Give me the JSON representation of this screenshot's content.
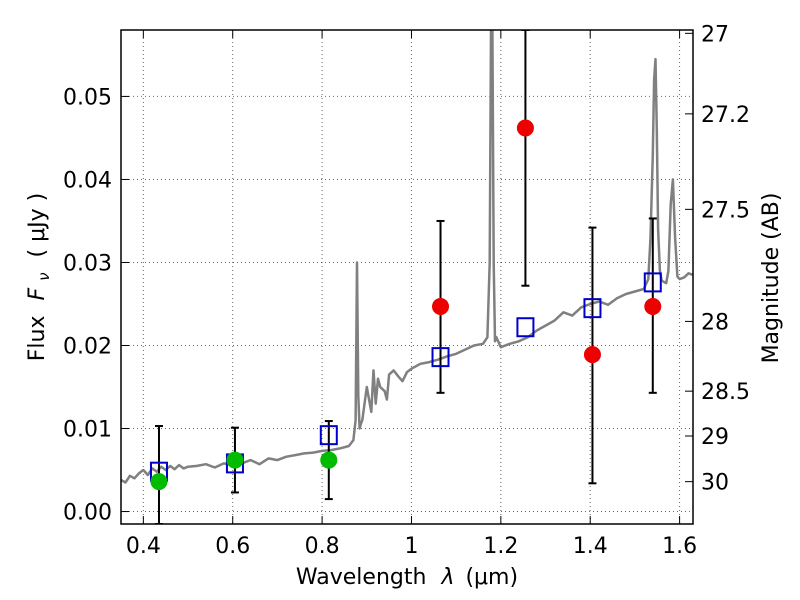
{
  "chart_data": {
    "type": "scatter",
    "xlabel": "Wavelength",
    "xlabel_symbol": "λ",
    "xlabel_unit": "(μm)",
    "ylabel": "Flux",
    "ylabel_symbol": "F",
    "ylabel_subscript": "ν",
    "ylabel_unit": "( μJy )",
    "y2label": "Magnitude (AB)",
    "xlim": [
      0.35,
      1.63
    ],
    "ylim": [
      -0.0015,
      0.058
    ],
    "grid": true,
    "xticks": [
      {
        "value": 0.4,
        "label": "0.4"
      },
      {
        "value": 0.6,
        "label": "0.6"
      },
      {
        "value": 0.8,
        "label": "0.8"
      },
      {
        "value": 1.0,
        "label": "1"
      },
      {
        "value": 1.2,
        "label": "1.2"
      },
      {
        "value": 1.4,
        "label": "1.4"
      },
      {
        "value": 1.6,
        "label": "1.6"
      }
    ],
    "yticks": [
      {
        "value": 0.0,
        "label": "0.00"
      },
      {
        "value": 0.01,
        "label": "0.01"
      },
      {
        "value": 0.02,
        "label": "0.02"
      },
      {
        "value": 0.03,
        "label": "0.03"
      },
      {
        "value": 0.04,
        "label": "0.04"
      },
      {
        "value": 0.05,
        "label": "0.05"
      }
    ],
    "y2ticks": [
      {
        "flux": 0.0576,
        "label": "27"
      },
      {
        "flux": 0.0479,
        "label": "27.2"
      },
      {
        "flux": 0.0364,
        "label": "27.5"
      },
      {
        "flux": 0.0229,
        "label": "28"
      },
      {
        "flux": 0.0145,
        "label": "28.5"
      },
      {
        "flux": 0.0091,
        "label": "29"
      },
      {
        "flux": 0.0036,
        "label": "30"
      }
    ],
    "series": [
      {
        "name": "model-spectrum",
        "kind": "line",
        "color": "#808080",
        "x": [
          0.35,
          0.36,
          0.37,
          0.38,
          0.39,
          0.4,
          0.41,
          0.42,
          0.43,
          0.44,
          0.45,
          0.46,
          0.47,
          0.48,
          0.49,
          0.5,
          0.52,
          0.54,
          0.56,
          0.58,
          0.6,
          0.62,
          0.64,
          0.66,
          0.68,
          0.7,
          0.72,
          0.74,
          0.76,
          0.78,
          0.8,
          0.82,
          0.84,
          0.86,
          0.87,
          0.875,
          0.878,
          0.881,
          0.884,
          0.887,
          0.89,
          0.9,
          0.91,
          0.915,
          0.92,
          0.925,
          0.93,
          0.94,
          0.945,
          0.95,
          0.96,
          0.97,
          0.98,
          0.99,
          1.0,
          1.02,
          1.04,
          1.06,
          1.08,
          1.1,
          1.12,
          1.14,
          1.16,
          1.17,
          1.175,
          1.178,
          1.181,
          1.184,
          1.187,
          1.19,
          1.2,
          1.22,
          1.24,
          1.26,
          1.28,
          1.3,
          1.32,
          1.34,
          1.36,
          1.38,
          1.4,
          1.42,
          1.44,
          1.46,
          1.48,
          1.5,
          1.52,
          1.53,
          1.535,
          1.54,
          1.543,
          1.546,
          1.549,
          1.552,
          1.556,
          1.56,
          1.57,
          1.575,
          1.58,
          1.585,
          1.59,
          1.595,
          1.6,
          1.61,
          1.62,
          1.63
        ],
        "y": [
          0.0038,
          0.0035,
          0.0043,
          0.004,
          0.0046,
          0.005,
          0.0044,
          0.0052,
          0.0048,
          0.0054,
          0.005,
          0.0055,
          0.0051,
          0.0056,
          0.0052,
          0.0054,
          0.0055,
          0.0057,
          0.0053,
          0.0058,
          0.0056,
          0.0058,
          0.0062,
          0.0057,
          0.0064,
          0.0062,
          0.0066,
          0.0068,
          0.007,
          0.0071,
          0.0073,
          0.0074,
          0.0076,
          0.0079,
          0.0086,
          0.011,
          0.03,
          0.014,
          0.01,
          0.0106,
          0.011,
          0.015,
          0.012,
          0.017,
          0.013,
          0.016,
          0.015,
          0.0145,
          0.0135,
          0.0165,
          0.017,
          0.0163,
          0.0157,
          0.0168,
          0.0172,
          0.0178,
          0.018,
          0.0183,
          0.0187,
          0.019,
          0.0195,
          0.02,
          0.0202,
          0.021,
          0.03,
          0.058,
          0.058,
          0.03,
          0.0205,
          0.021,
          0.0198,
          0.0202,
          0.0205,
          0.021,
          0.0218,
          0.0224,
          0.023,
          0.024,
          0.0236,
          0.0246,
          0.025,
          0.0253,
          0.0249,
          0.0257,
          0.0262,
          0.0265,
          0.0268,
          0.028,
          0.033,
          0.043,
          0.052,
          0.0545,
          0.046,
          0.034,
          0.029,
          0.0278,
          0.0275,
          0.029,
          0.037,
          0.04,
          0.033,
          0.0283,
          0.028,
          0.0282,
          0.0287,
          0.0285
        ]
      },
      {
        "name": "model-photometry",
        "kind": "square",
        "color": "#0000cc",
        "x": [
          0.435,
          0.605,
          0.815,
          1.065,
          1.255,
          1.405,
          1.54
        ],
        "y": [
          0.0048,
          0.0058,
          0.0092,
          0.0186,
          0.0222,
          0.0245,
          0.0276
        ]
      },
      {
        "name": "detections",
        "kind": "circle",
        "color": "#00bb00",
        "x": [
          0.435,
          0.605,
          0.815
        ],
        "y": [
          0.0036,
          0.0062,
          0.0062
        ],
        "err_low": [
          -0.0015,
          0.0023,
          0.0015
        ],
        "err_high": [
          0.0103,
          0.0101,
          0.0109
        ]
      },
      {
        "name": "upper-limits",
        "kind": "circle",
        "color": "#ee0000",
        "x": [
          1.065,
          1.255,
          1.405,
          1.54
        ],
        "y": [
          0.0247,
          0.0462,
          0.0189,
          0.0247
        ],
        "err_low": [
          0.0143,
          0.0272,
          0.0034,
          0.0143
        ],
        "err_high": [
          0.035,
          0.058,
          0.0342,
          0.0353
        ]
      }
    ]
  }
}
